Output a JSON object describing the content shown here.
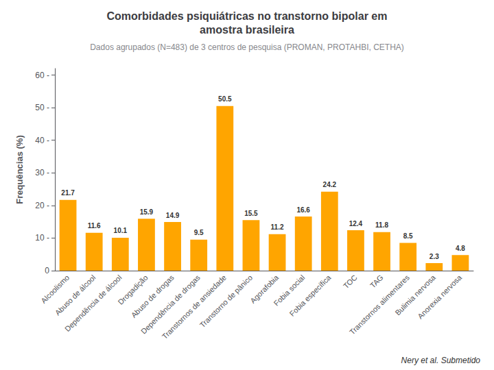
{
  "chart_data": {
    "type": "bar",
    "title": "Comorbidades psiquiátricas no transtorno bipolar em\namostra brasileira",
    "subtitle": "Dados agrupados (N=483) de 3 centros de pesquisa (PROMAN, PROTAHBI, CETHA)",
    "ylabel": "Frequências (%)",
    "categories": [
      "Alcoolismo",
      "Abuso de álcool",
      "Dependência de álcool",
      "Drogadição",
      "Abuso de drogas",
      "Dependência de drogas",
      "Transtornos de ansiedade",
      "Transtorno de pânico",
      "Agorafobia",
      "Fobia social",
      "Fobia específica",
      "TOC",
      "TAG",
      "Transtornos alimentares",
      "Bulimia nervosa",
      "Anorexia nervosa"
    ],
    "values": [
      21.7,
      11.6,
      10.1,
      15.9,
      14.9,
      9.5,
      50.5,
      15.5,
      11.2,
      16.6,
      24.2,
      12.4,
      11.8,
      8.5,
      2.3,
      4.8
    ],
    "color": "#FFA500",
    "ylim": [
      0,
      62
    ],
    "yticks": [
      0,
      {
        "value": 10,
        "label": "10 -"
      },
      {
        "value": 20,
        "label": "20 -"
      },
      {
        "value": 30,
        "label": "30 -"
      },
      {
        "value": 40,
        "label": "40 -"
      },
      {
        "value": 50,
        "label": "50 -"
      },
      {
        "value": 60,
        "label": "60 -"
      }
    ],
    "grid": false,
    "data_labels": true,
    "annotations": [
      "Nery et al. Submetido"
    ]
  }
}
